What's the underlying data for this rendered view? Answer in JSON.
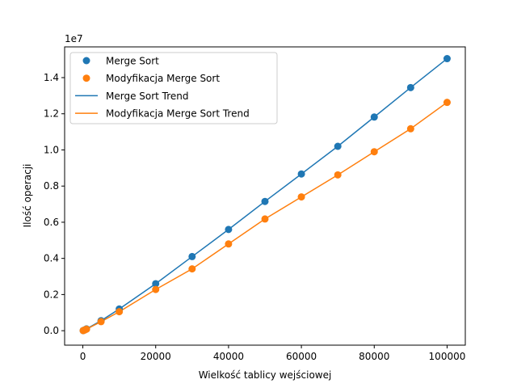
{
  "chart_data": {
    "type": "scatter",
    "title": "",
    "xlabel": "Wielkość tablicy wejściowej",
    "ylabel": "Ilość operacji",
    "offset_text": "1e7",
    "scale_factor": 10000000,
    "xlim": [
      -5000,
      105000
    ],
    "ylim": [
      -0.08,
      1.57
    ],
    "x_ticks": [
      0,
      20000,
      40000,
      60000,
      80000,
      100000
    ],
    "x_tick_labels": [
      "0",
      "20000",
      "40000",
      "60000",
      "80000",
      "100000"
    ],
    "y_ticks": [
      0.0,
      0.2,
      0.4,
      0.6,
      0.8,
      1.0,
      1.2,
      1.4
    ],
    "y_tick_labels": [
      "0.0",
      "0.2",
      "0.4",
      "0.6",
      "0.8",
      "1.0",
      "1.2",
      "1.4"
    ],
    "grid": false,
    "legend_position": "upper-left",
    "series": [
      {
        "name": "Merge Sort",
        "kind": "scatter",
        "color": "#1f77b4",
        "x": [
          100,
          500,
          1000,
          5000,
          10000,
          20000,
          30000,
          40000,
          50000,
          60000,
          70000,
          80000,
          90000,
          100000
        ],
        "y": [
          0.0007,
          0.0045,
          0.0099,
          0.055,
          0.12,
          0.26,
          0.41,
          0.56,
          0.715,
          0.867,
          1.02,
          1.182,
          1.345,
          1.505
        ]
      },
      {
        "name": "Modyfikacja Merge Sort",
        "kind": "scatter",
        "color": "#ff7f0e",
        "x": [
          100,
          500,
          1000,
          5000,
          10000,
          20000,
          30000,
          40000,
          50000,
          60000,
          70000,
          80000,
          90000,
          100000
        ],
        "y": [
          0.0006,
          0.0038,
          0.0084,
          0.05,
          0.105,
          0.228,
          0.342,
          0.48,
          0.618,
          0.74,
          0.862,
          0.99,
          1.117,
          1.263
        ]
      },
      {
        "name": "Merge Sort Trend",
        "kind": "line",
        "color": "#1f77b4",
        "x": [
          100,
          500,
          1000,
          5000,
          10000,
          20000,
          30000,
          40000,
          50000,
          60000,
          70000,
          80000,
          90000,
          100000
        ],
        "y": [
          0.0007,
          0.0045,
          0.0099,
          0.055,
          0.12,
          0.26,
          0.41,
          0.56,
          0.715,
          0.867,
          1.02,
          1.182,
          1.345,
          1.505
        ]
      },
      {
        "name": "Modyfikacja Merge Sort Trend",
        "kind": "line",
        "color": "#ff7f0e",
        "x": [
          100,
          500,
          1000,
          5000,
          10000,
          20000,
          30000,
          40000,
          50000,
          60000,
          70000,
          80000,
          90000,
          100000
        ],
        "y": [
          0.0006,
          0.0038,
          0.0084,
          0.05,
          0.105,
          0.228,
          0.342,
          0.48,
          0.618,
          0.74,
          0.862,
          0.99,
          1.117,
          1.263
        ]
      }
    ]
  }
}
